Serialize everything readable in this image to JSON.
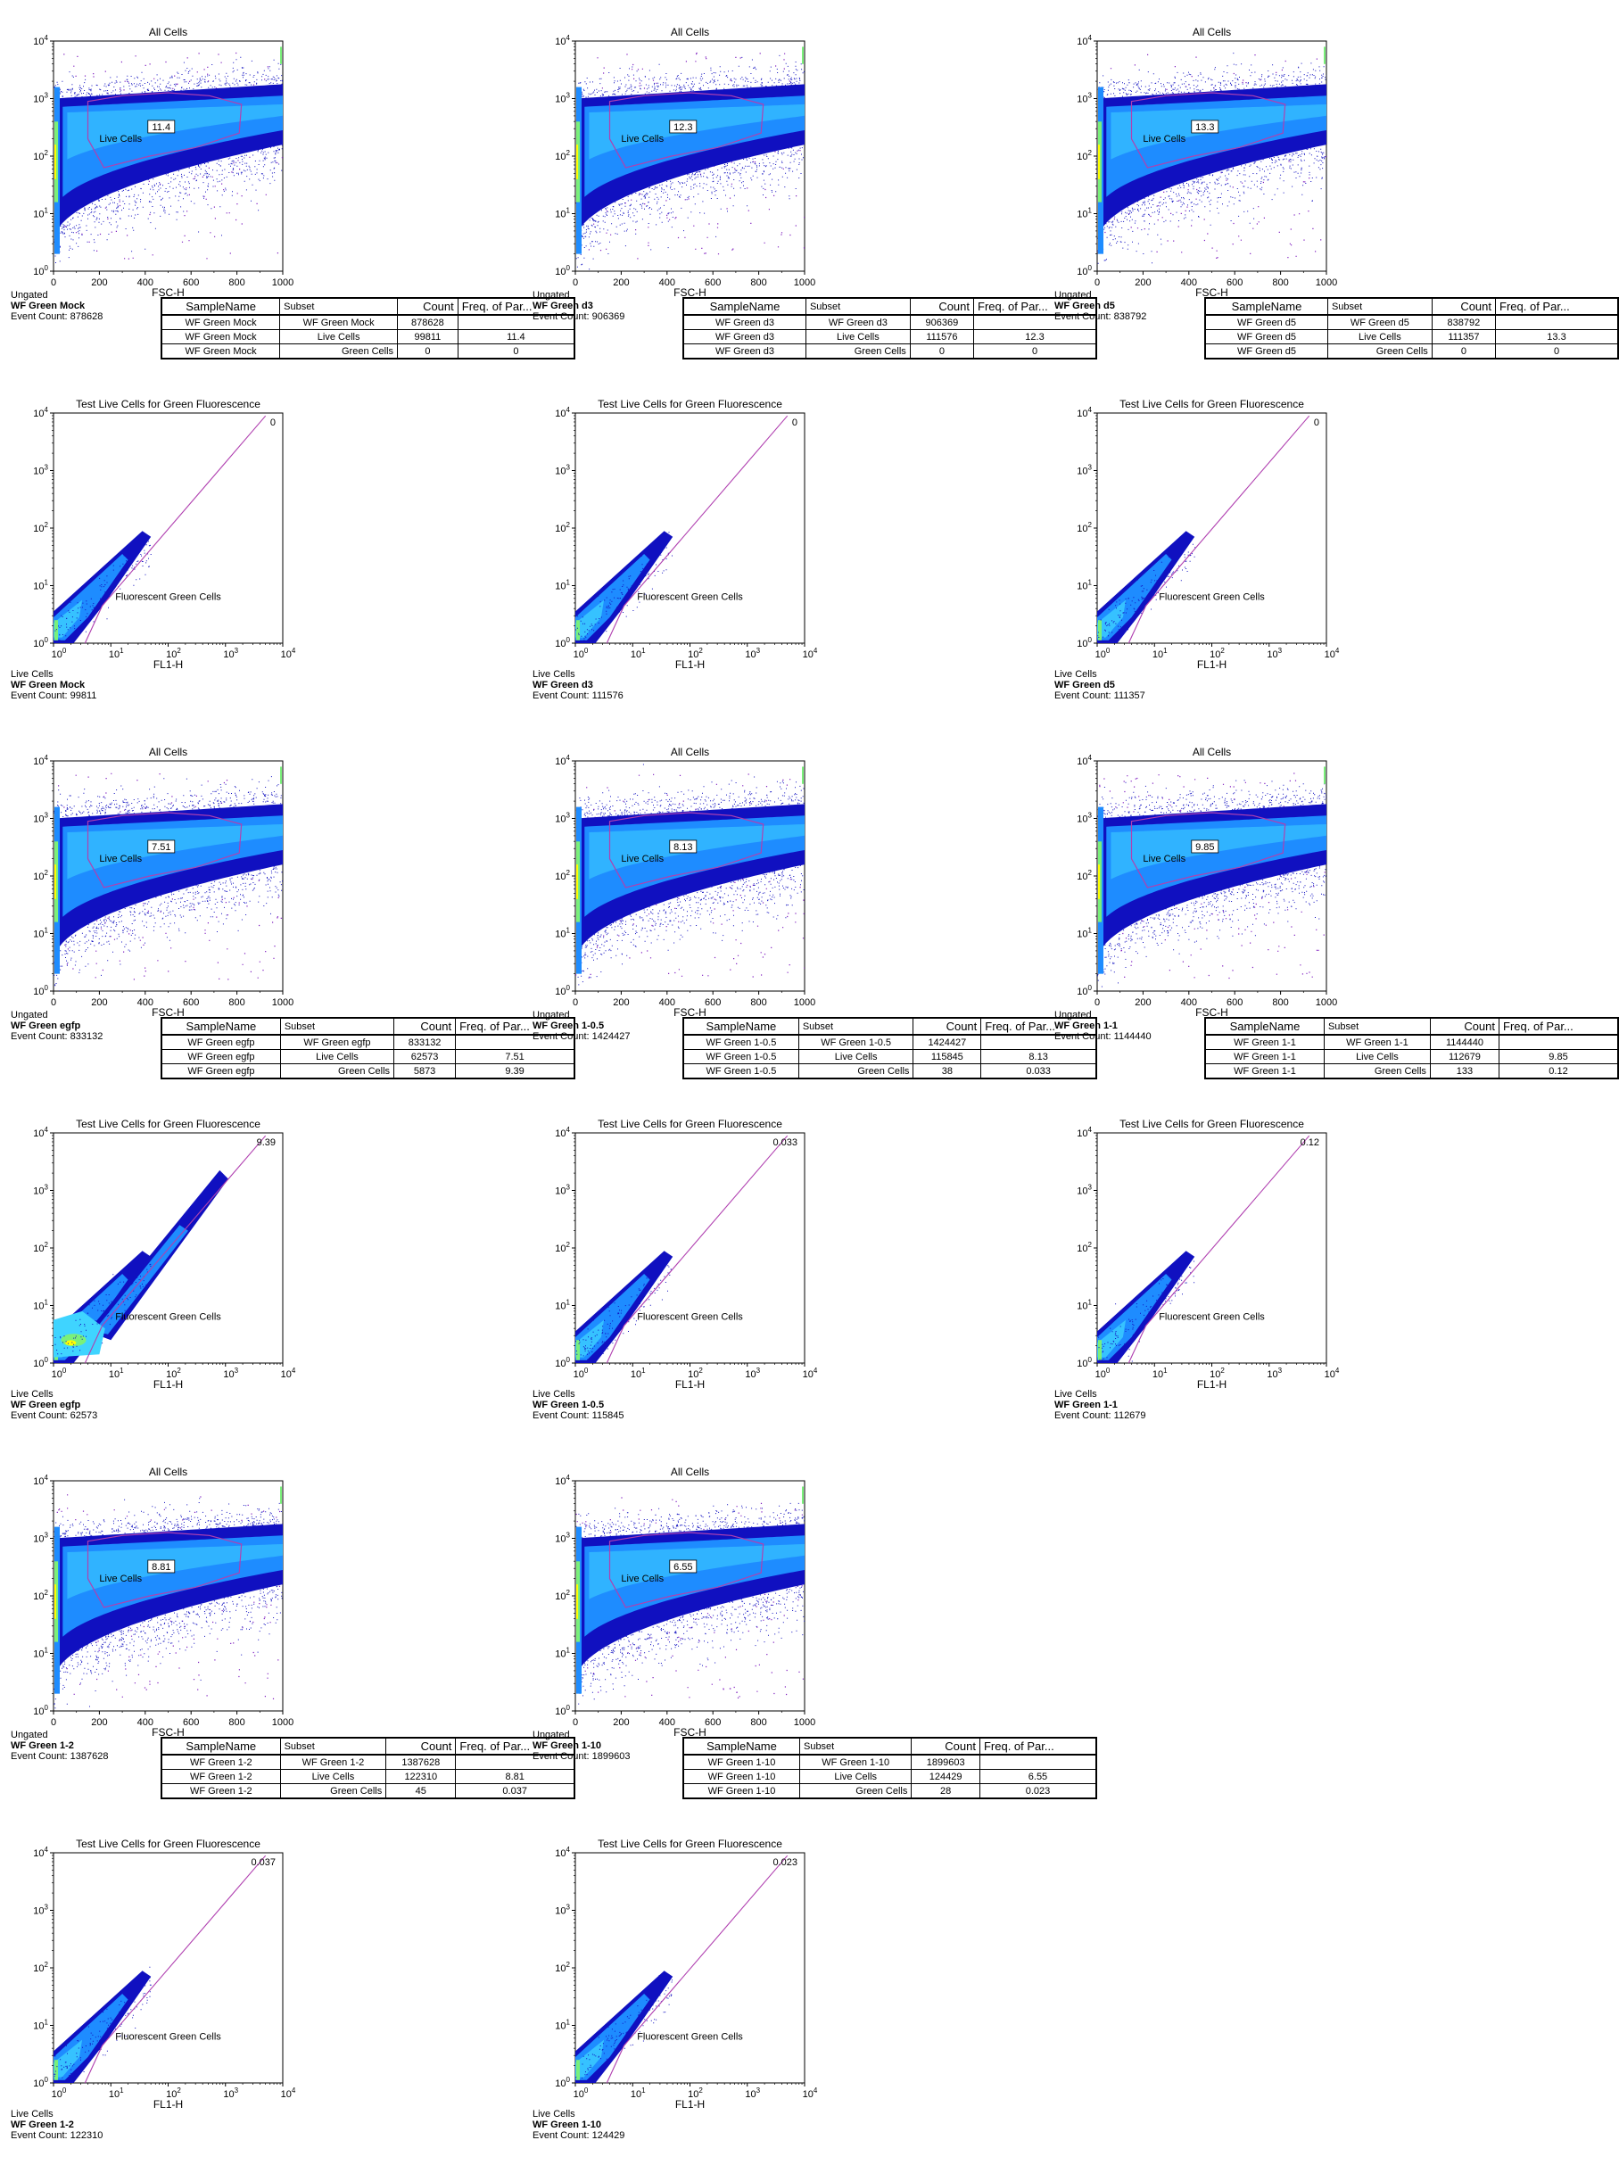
{
  "colors": {
    "density_low": "#1010c0",
    "density_mid": "#1e8cff",
    "density_high": "#3fd4ff",
    "density_peak": "#7af07a",
    "density_core": "#ffff00",
    "gate": "#b040b0",
    "outlier": "#8020c0"
  },
  "gate_labels": {
    "live": "Live Cells",
    "green": "Fluorescent Green Cells"
  },
  "table_headers": [
    "SampleName",
    "Subset",
    "Count",
    "Freq. of Par..."
  ],
  "samples": [
    {
      "name": "WF Green Mock",
      "ungated": {
        "title": "All Cells",
        "xlabel": "FSC-H",
        "status": "Ungated",
        "event_label": "Event Count: 878628",
        "gate_value": "11.4"
      },
      "live": {
        "title": "Test Live Cells for Green Fluorescence",
        "xlabel": "FL1-H",
        "status": "Live Cells",
        "event_label": "Event Count: 99811",
        "gate_value": "0"
      },
      "table": [
        [
          "WF Green Mock",
          "WF Green Mock",
          "878628",
          ""
        ],
        [
          "WF Green Mock",
          "Live Cells",
          "99811",
          "11.4"
        ],
        [
          "WF Green Mock",
          "Green Cells",
          "0",
          "0"
        ]
      ]
    },
    {
      "name": "WF Green d3",
      "ungated": {
        "title": "All Cells",
        "xlabel": "FSC-H",
        "status": "Ungated",
        "event_label": "Event Count: 906369",
        "gate_value": "12.3"
      },
      "live": {
        "title": "Test Live Cells for Green Fluorescence",
        "xlabel": "FL1-H",
        "status": "Live Cells",
        "event_label": "Event Count: 111576",
        "gate_value": "0"
      },
      "table": [
        [
          "WF Green d3",
          "WF Green d3",
          "906369",
          ""
        ],
        [
          "WF Green d3",
          "Live Cells",
          "111576",
          "12.3"
        ],
        [
          "WF Green d3",
          "Green Cells",
          "0",
          "0"
        ]
      ]
    },
    {
      "name": "WF Green d5",
      "ungated": {
        "title": "All Cells",
        "xlabel": "FSC-H",
        "status": "Ungated",
        "event_label": "Event Count: 838792",
        "gate_value": "13.3"
      },
      "live": {
        "title": "Test Live Cells for Green Fluorescence",
        "xlabel": "FL1-H",
        "status": "Live Cells",
        "event_label": "Event Count: 111357",
        "gate_value": "0"
      },
      "table": [
        [
          "WF Green d5",
          "WF Green d5",
          "838792",
          ""
        ],
        [
          "WF Green d5",
          "Live Cells",
          "111357",
          "13.3"
        ],
        [
          "WF Green d5",
          "Green Cells",
          "0",
          "0"
        ]
      ]
    },
    {
      "name": "WF Green egfp",
      "ungated": {
        "title": "All Cells",
        "xlabel": "FSC-H",
        "status": "Ungated",
        "event_label": "Event Count: 833132",
        "gate_value": "7.51"
      },
      "live": {
        "title": "Test Live Cells for Green Fluorescence",
        "xlabel": "FL1-H",
        "status": "Live Cells",
        "event_label": "Event Count: 62573",
        "gate_value": "9.39"
      },
      "table": [
        [
          "WF Green egfp",
          "WF Green egfp",
          "833132",
          ""
        ],
        [
          "WF Green egfp",
          "Live Cells",
          "62573",
          "7.51"
        ],
        [
          "WF Green egfp",
          "Green Cells",
          "5873",
          "9.39"
        ]
      ]
    },
    {
      "name": "WF Green 1-0.5",
      "ungated": {
        "title": "All Cells",
        "xlabel": "FSC-H",
        "status": "Ungated",
        "event_label": "Event Count: 1424427",
        "gate_value": "8.13"
      },
      "live": {
        "title": "Test Live Cells for Green Fluorescence",
        "xlabel": "FL1-H",
        "status": "Live Cells",
        "event_label": "Event Count: 115845",
        "gate_value": "0.033"
      },
      "table": [
        [
          "WF Green 1-0.5",
          "WF Green 1-0.5",
          "1424427",
          ""
        ],
        [
          "WF Green 1-0.5",
          "Live Cells",
          "115845",
          "8.13"
        ],
        [
          "WF Green 1-0.5",
          "Green Cells",
          "38",
          "0.033"
        ]
      ]
    },
    {
      "name": "WF Green 1-1",
      "ungated": {
        "title": "All Cells",
        "xlabel": "FSC-H",
        "status": "Ungated",
        "event_label": "Event Count: 1144440",
        "gate_value": "9.85"
      },
      "live": {
        "title": "Test Live Cells for Green Fluorescence",
        "xlabel": "FL1-H",
        "status": "Live Cells",
        "event_label": "Event Count: 112679",
        "gate_value": "0.12"
      },
      "table": [
        [
          "WF Green 1-1",
          "WF Green 1-1",
          "1144440",
          ""
        ],
        [
          "WF Green 1-1",
          "Live Cells",
          "112679",
          "9.85"
        ],
        [
          "WF Green 1-1",
          "Green Cells",
          "133",
          "0.12"
        ]
      ]
    },
    {
      "name": "WF Green 1-2",
      "ungated": {
        "title": "All Cells",
        "xlabel": "FSC-H",
        "status": "Ungated",
        "event_label": "Event Count: 1387628",
        "gate_value": "8.81"
      },
      "live": {
        "title": "Test Live Cells for Green Fluorescence",
        "xlabel": "FL1-H",
        "status": "Live Cells",
        "event_label": "Event Count: 122310",
        "gate_value": "0.037"
      },
      "table": [
        [
          "WF Green 1-2",
          "WF Green 1-2",
          "1387628",
          ""
        ],
        [
          "WF Green 1-2",
          "Live Cells",
          "122310",
          "8.81"
        ],
        [
          "WF Green 1-2",
          "Green Cells",
          "45",
          "0.037"
        ]
      ]
    },
    {
      "name": "WF Green 1-10",
      "ungated": {
        "title": "All Cells",
        "xlabel": "FSC-H",
        "status": "Ungated",
        "event_label": "Event Count: 1899603",
        "gate_value": "6.55"
      },
      "live": {
        "title": "Test Live Cells for Green Fluorescence",
        "xlabel": "FL1-H",
        "status": "Live Cells",
        "event_label": "Event Count: 124429",
        "gate_value": "0.023"
      },
      "table": [
        [
          "WF Green 1-10",
          "WF Green 1-10",
          "1899603",
          ""
        ],
        [
          "WF Green 1-10",
          "Live Cells",
          "124429",
          "6.55"
        ],
        [
          "WF Green 1-10",
          "Green Cells",
          "28",
          "0.023"
        ]
      ]
    }
  ],
  "chart_data": {
    "type": "scatter",
    "panels": [
      {
        "sample": "WF Green Mock",
        "title": "All Cells",
        "xlabel": "FSC-H",
        "x_axis": "linear",
        "y_axis": "log",
        "xlim": [
          0,
          1000
        ],
        "ylim": [
          1,
          10000
        ],
        "x_ticks": [
          "0",
          "200",
          "400",
          "600",
          "800",
          "1000"
        ],
        "y_ticks": [
          "10^0",
          "10^1",
          "10^2",
          "10^3",
          "10^4"
        ],
        "gate": "Live Cells",
        "gate_value": "11.4"
      },
      {
        "sample": "WF Green d3",
        "title": "All Cells",
        "xlabel": "FSC-H",
        "x_axis": "linear",
        "y_axis": "log",
        "xlim": [
          0,
          1000
        ],
        "ylim": [
          1,
          10000
        ],
        "gate": "Live Cells",
        "gate_value": "12.3"
      },
      {
        "sample": "WF Green d5",
        "title": "All Cells",
        "xlabel": "FSC-H",
        "x_axis": "linear",
        "y_axis": "log",
        "xlim": [
          0,
          1000
        ],
        "ylim": [
          1,
          10000
        ],
        "gate": "Live Cells",
        "gate_value": "13.3"
      },
      {
        "sample": "WF Green Mock",
        "title": "Test Live Cells for Green Fluorescence",
        "xlabel": "FL1-H",
        "x_axis": "log",
        "y_axis": "log",
        "xlim": [
          1,
          10000
        ],
        "ylim": [
          1,
          10000
        ],
        "gate": "Fluorescent Green Cells",
        "gate_value": "0"
      },
      {
        "sample": "WF Green d3",
        "title": "Test Live Cells for Green Fluorescence",
        "xlabel": "FL1-H",
        "x_axis": "log",
        "y_axis": "log",
        "xlim": [
          1,
          10000
        ],
        "ylim": [
          1,
          10000
        ],
        "gate": "Fluorescent Green Cells",
        "gate_value": "0"
      },
      {
        "sample": "WF Green d5",
        "title": "Test Live Cells for Green Fluorescence",
        "xlabel": "FL1-H",
        "x_axis": "log",
        "y_axis": "log",
        "xlim": [
          1,
          10000
        ],
        "ylim": [
          1,
          10000
        ],
        "gate": "Fluorescent Green Cells",
        "gate_value": "0"
      },
      {
        "sample": "WF Green egfp",
        "title": "All Cells",
        "xlabel": "FSC-H",
        "x_axis": "linear",
        "y_axis": "log",
        "xlim": [
          0,
          1000
        ],
        "ylim": [
          1,
          10000
        ],
        "gate": "Live Cells",
        "gate_value": "7.51"
      },
      {
        "sample": "WF Green 1-0.5",
        "title": "All Cells",
        "xlabel": "FSC-H",
        "x_axis": "linear",
        "y_axis": "log",
        "xlim": [
          0,
          1000
        ],
        "ylim": [
          1,
          10000
        ],
        "gate": "Live Cells",
        "gate_value": "8.13"
      },
      {
        "sample": "WF Green 1-1",
        "title": "All Cells",
        "xlabel": "FSC-H",
        "x_axis": "linear",
        "y_axis": "log",
        "xlim": [
          0,
          1000
        ],
        "ylim": [
          1,
          10000
        ],
        "gate": "Live Cells",
        "gate_value": "9.85"
      },
      {
        "sample": "WF Green egfp",
        "title": "Test Live Cells for Green Fluorescence",
        "xlabel": "FL1-H",
        "x_axis": "log",
        "y_axis": "log",
        "xlim": [
          1,
          10000
        ],
        "ylim": [
          1,
          10000
        ],
        "gate": "Fluorescent Green Cells",
        "gate_value": "9.39"
      },
      {
        "sample": "WF Green 1-0.5",
        "title": "Test Live Cells for Green Fluorescence",
        "xlabel": "FL1-H",
        "x_axis": "log",
        "y_axis": "log",
        "xlim": [
          1,
          10000
        ],
        "ylim": [
          1,
          10000
        ],
        "gate": "Fluorescent Green Cells",
        "gate_value": "0.033"
      },
      {
        "sample": "WF Green 1-1",
        "title": "Test Live Cells for Green Fluorescence",
        "xlabel": "FL1-H",
        "x_axis": "log",
        "y_axis": "log",
        "xlim": [
          1,
          10000
        ],
        "ylim": [
          1,
          10000
        ],
        "gate": "Fluorescent Green Cells",
        "gate_value": "0.12"
      },
      {
        "sample": "WF Green 1-2",
        "title": "All Cells",
        "xlabel": "FSC-H",
        "x_axis": "linear",
        "y_axis": "log",
        "xlim": [
          0,
          1000
        ],
        "ylim": [
          1,
          10000
        ],
        "gate": "Live Cells",
        "gate_value": "8.81"
      },
      {
        "sample": "WF Green 1-10",
        "title": "All Cells",
        "xlabel": "FSC-H",
        "x_axis": "linear",
        "y_axis": "log",
        "xlim": [
          0,
          1000
        ],
        "ylim": [
          1,
          10000
        ],
        "gate": "Live Cells",
        "gate_value": "6.55"
      },
      {
        "sample": "WF Green 1-2",
        "title": "Test Live Cells for Green Fluorescence",
        "xlabel": "FL1-H",
        "x_axis": "log",
        "y_axis": "log",
        "xlim": [
          1,
          10000
        ],
        "ylim": [
          1,
          10000
        ],
        "gate": "Fluorescent Green Cells",
        "gate_value": "0.037"
      },
      {
        "sample": "WF Green 1-10",
        "title": "Test Live Cells for Green Fluorescence",
        "xlabel": "FL1-H",
        "x_axis": "log",
        "y_axis": "log",
        "xlim": [
          1,
          10000
        ],
        "ylim": [
          1,
          10000
        ],
        "gate": "Fluorescent Green Cells",
        "gate_value": "0.023"
      }
    ]
  }
}
